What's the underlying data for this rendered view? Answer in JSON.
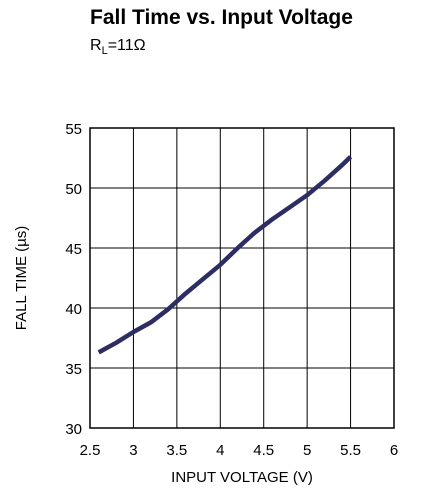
{
  "chart_data": {
    "type": "line",
    "title": "Fall Time vs. Input Voltage",
    "subtitle": {
      "prefix": "R",
      "sub": "L",
      "suffix": "=11Ω"
    },
    "xlabel": "INPUT VOLTAGE (V)",
    "ylabel": "FALL TIME (µs)",
    "xlim": [
      2.5,
      6
    ],
    "ylim": [
      30,
      55
    ],
    "xticks": [
      "2.5",
      "3",
      "3.5",
      "4",
      "4.5",
      "5",
      "5.5",
      "6"
    ],
    "yticks": [
      "30",
      "35",
      "40",
      "45",
      "50",
      "55"
    ],
    "grid": true,
    "series_color": "#2e2d63",
    "series": [
      {
        "x": [
          2.6,
          2.8,
          3.0,
          3.2,
          3.4,
          3.6,
          3.8,
          4.0,
          4.2,
          4.4,
          4.6,
          4.8,
          5.0,
          5.2,
          5.4,
          5.5
        ],
        "y": [
          36.3,
          37.1,
          38.0,
          38.8,
          39.9,
          41.2,
          42.4,
          43.6,
          45.0,
          46.3,
          47.4,
          48.4,
          49.4,
          50.6,
          51.9,
          52.6
        ]
      }
    ]
  }
}
